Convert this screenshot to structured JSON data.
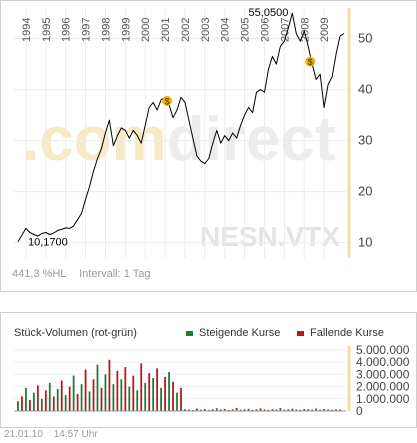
{
  "chart_data": [
    {
      "type": "line",
      "ticker": "NESN.VTX",
      "brand_watermark": ".comdirect",
      "x_tick_labels": [
        "1994",
        "1995",
        "1996",
        "1997",
        "1998",
        "1999",
        "2000",
        "2001",
        "2002",
        "2003",
        "2004",
        "2005",
        "2006",
        "2007",
        "2008",
        "2009"
      ],
      "y_tick_labels": [
        10,
        20,
        30,
        40,
        50
      ],
      "ylim": [
        7,
        56
      ],
      "xlim": [
        1993.4,
        2010.1
      ],
      "grid": true,
      "high_label": "55,0500",
      "low_label": "10,1700",
      "series": [
        {
          "x": [
            1993.6,
            1993.8,
            1994.0,
            1994.2,
            1994.4,
            1994.6,
            1994.8,
            1995.0,
            1995.2,
            1995.4,
            1995.6,
            1995.8,
            1996.0,
            1996.2,
            1996.4,
            1996.6,
            1996.8,
            1997.0,
            1997.2,
            1997.4,
            1997.6,
            1997.8,
            1998.0,
            1998.2,
            1998.4,
            1998.6,
            1998.8,
            1999.0,
            1999.2,
            1999.4,
            1999.6,
            1999.8,
            2000.0,
            2000.2,
            2000.4,
            2000.6,
            2000.8,
            2001.0,
            2001.2,
            2001.4,
            2001.6,
            2001.8,
            2002.0,
            2002.2,
            2002.4,
            2002.6,
            2002.8,
            2003.0,
            2003.2,
            2003.4,
            2003.6,
            2003.8,
            2004.0,
            2004.2,
            2004.4,
            2004.6,
            2004.8,
            2005.0,
            2005.2,
            2005.4,
            2005.6,
            2005.8,
            2006.0,
            2006.2,
            2006.4,
            2006.6,
            2006.8,
            2007.0,
            2007.2,
            2007.4,
            2007.6,
            2007.8,
            2008.0,
            2008.2,
            2008.4,
            2008.6,
            2008.8,
            2009.0,
            2009.2,
            2009.4,
            2009.6,
            2009.8,
            2010.0
          ],
          "values": [
            10.2,
            11.5,
            12.8,
            12.0,
            11.6,
            11.3,
            11.8,
            12.0,
            11.6,
            11.9,
            12.4,
            12.6,
            12.9,
            12.8,
            13.3,
            14.5,
            15.8,
            18.5,
            21.0,
            24.0,
            26.5,
            28.5,
            31.5,
            34.0,
            29.0,
            31.0,
            32.5,
            32.0,
            30.5,
            32.0,
            31.0,
            29.5,
            33.0,
            36.5,
            37.5,
            36.0,
            38.0,
            38.5,
            37.0,
            34.5,
            36.0,
            38.5,
            37.5,
            34.0,
            30.5,
            27.0,
            26.0,
            25.5,
            26.5,
            29.5,
            32.0,
            29.5,
            31.0,
            30.0,
            31.5,
            30.5,
            33.0,
            35.0,
            36.5,
            35.5,
            39.5,
            40.0,
            39.5,
            44.0,
            46.5,
            45.0,
            48.5,
            49.5,
            52.0,
            55.0,
            51.0,
            49.5,
            51.5,
            48.5,
            45.0,
            42.0,
            43.0,
            36.5,
            41.0,
            42.5,
            47.0,
            50.5,
            51.0
          ],
          "color": "#000000"
        }
      ],
      "event_markers": [
        {
          "x": 2001.1,
          "y": 37.8,
          "symbol": "$"
        },
        {
          "x": 2008.3,
          "y": 45.5,
          "symbol": "$"
        }
      ],
      "performance_label": "441,3 %HL",
      "interval_label": "Intervall: 1 Tag"
    },
    {
      "type": "bar",
      "title": "Stück-Volumen (rot-grün)",
      "legend": [
        {
          "label": "Steigende Kurse",
          "color": "#1f7a3a"
        },
        {
          "label": "Fallende Kurse",
          "color": "#b31b1b"
        }
      ],
      "y_tick_labels": [
        "5.000.000",
        "4.000.000",
        "3.000.000",
        "2.000.000",
        "1.000.000",
        "0"
      ],
      "ylim": [
        0,
        5000000
      ],
      "xlim": [
        1993.4,
        2010.1
      ],
      "bars": {
        "x": [
          1993.6,
          1993.8,
          1994.0,
          1994.2,
          1994.4,
          1994.6,
          1994.8,
          1995.0,
          1995.2,
          1995.4,
          1995.6,
          1995.8,
          1996.0,
          1996.2,
          1996.4,
          1996.6,
          1996.8,
          1997.0,
          1997.2,
          1997.4,
          1997.6,
          1997.8,
          1998.0,
          1998.2,
          1998.4,
          1998.6,
          1998.8,
          1999.0,
          1999.2,
          1999.4,
          1999.6,
          1999.8,
          2000.0,
          2000.2,
          2000.4,
          2000.6,
          2000.8,
          2001.0,
          2001.2,
          2001.4,
          2001.6,
          2001.8,
          2002.0,
          2002.2,
          2002.4,
          2002.6,
          2002.8,
          2003.0,
          2003.2,
          2003.4,
          2003.6,
          2003.8,
          2004.0,
          2004.2,
          2004.4,
          2004.6,
          2004.8,
          2005.0,
          2005.2,
          2005.4,
          2005.6,
          2005.8,
          2006.0,
          2006.2,
          2006.4,
          2006.6,
          2006.8,
          2007.0,
          2007.2,
          2007.4,
          2007.6,
          2007.8,
          2008.0,
          2008.2,
          2008.4,
          2008.6,
          2008.8,
          2009.0,
          2009.2,
          2009.4,
          2009.6,
          2009.8
        ],
        "values": [
          800000,
          1200000,
          1900000,
          900000,
          1500000,
          2100000,
          1000000,
          1700000,
          2300000,
          1200000,
          1800000,
          2500000,
          1300000,
          2000000,
          2900000,
          1400000,
          2200000,
          3400000,
          1600000,
          2600000,
          3800000,
          1900000,
          3000000,
          4200000,
          2200000,
          3300000,
          2600000,
          3600000,
          2000000,
          2900000,
          1700000,
          3900000,
          2300000,
          3100000,
          2700000,
          3500000,
          1900000,
          2800000,
          3200000,
          2400000,
          1500000,
          1900000,
          150000,
          120000,
          90000,
          200000,
          110000,
          160000,
          100000,
          140000,
          230000,
          120000,
          170000,
          90000,
          150000,
          250000,
          110000,
          130000,
          180000,
          100000,
          140000,
          220000,
          130000,
          100000,
          160000,
          120000,
          250000,
          110000,
          140000,
          190000,
          130000,
          100000,
          170000,
          150000,
          120000,
          200000,
          110000,
          160000,
          130000,
          100000,
          140000,
          120000
        ],
        "colors": [
          "g",
          "r",
          "g",
          "r",
          "g",
          "r",
          "g",
          "r",
          "g",
          "r",
          "g",
          "r",
          "g",
          "r",
          "g",
          "r",
          "g",
          "r",
          "g",
          "r",
          "g",
          "r",
          "g",
          "r",
          "g",
          "r",
          "g",
          "r",
          "g",
          "r",
          "g",
          "r",
          "g",
          "r",
          "g",
          "r",
          "g",
          "r",
          "g",
          "r",
          "g",
          "r",
          "g",
          "r",
          "g",
          "r",
          "g",
          "r",
          "g",
          "r",
          "g",
          "r",
          "g",
          "r",
          "g",
          "r",
          "g",
          "r",
          "g",
          "r",
          "g",
          "r",
          "g",
          "r",
          "g",
          "r",
          "g",
          "r",
          "g",
          "r",
          "g",
          "r",
          "g",
          "r",
          "g",
          "r",
          "g",
          "r",
          "g",
          "r",
          "g",
          "r"
        ]
      }
    }
  ],
  "footer": {
    "date": "21.01.10",
    "time": "14:57 Uhr"
  }
}
